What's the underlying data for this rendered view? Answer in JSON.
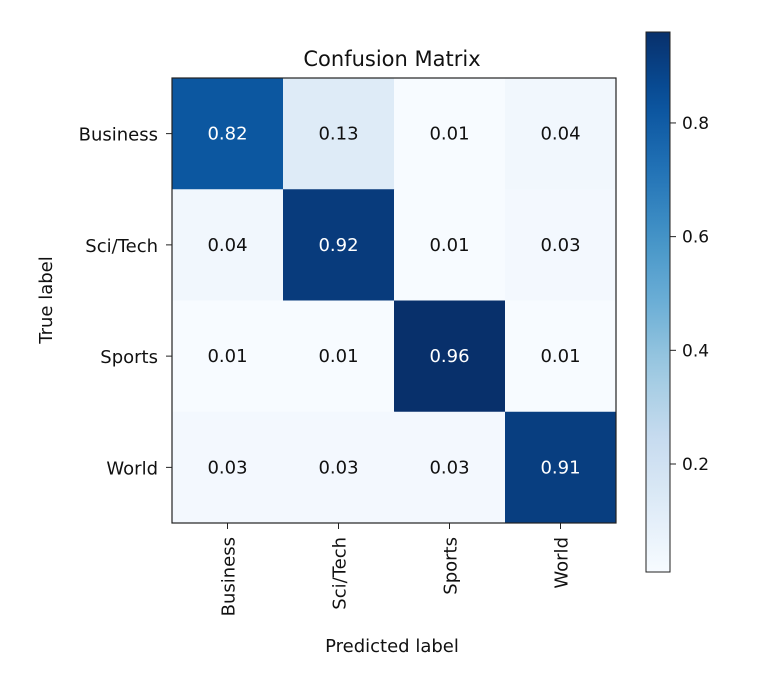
{
  "chart_data": {
    "type": "heatmap",
    "title": "Confusion Matrix",
    "xlabel": "Predicted label",
    "ylabel": "True label",
    "x_categories": [
      "Business",
      "Sci/Tech",
      "Sports",
      "World"
    ],
    "y_categories": [
      "Business",
      "Sci/Tech",
      "Sports",
      "World"
    ],
    "values": [
      [
        0.82,
        0.13,
        0.01,
        0.04
      ],
      [
        0.04,
        0.92,
        0.01,
        0.03
      ],
      [
        0.01,
        0.01,
        0.96,
        0.01
      ],
      [
        0.03,
        0.03,
        0.03,
        0.91
      ]
    ],
    "value_labels": [
      [
        "0.82",
        "0.13",
        "0.01",
        "0.04"
      ],
      [
        "0.04",
        "0.92",
        "0.01",
        "0.03"
      ],
      [
        "0.01",
        "0.01",
        "0.96",
        "0.01"
      ],
      [
        "0.03",
        "0.03",
        "0.03",
        "0.91"
      ]
    ],
    "colormap": "Blues",
    "colorbar": {
      "range": [
        0.01,
        0.96
      ],
      "ticks": [
        0.2,
        0.4,
        0.6,
        0.8
      ],
      "tick_labels": [
        "0.2",
        "0.4",
        "0.6",
        "0.8"
      ]
    },
    "grid": false
  }
}
